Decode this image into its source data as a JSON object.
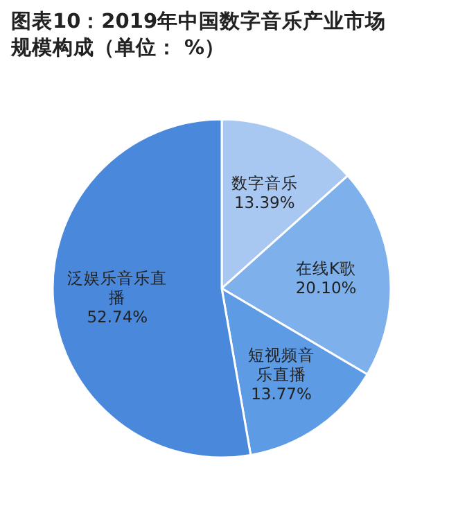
{
  "chart_data": {
    "type": "pie",
    "title": "图表10：2019年中国数字音乐产业市场规模构成（单位： %）",
    "categories": [
      "数字音乐",
      "在线K歌",
      "短视频音乐直播",
      "泛娱乐音乐直播"
    ],
    "values": [
      13.39,
      20.1,
      13.77,
      52.74
    ],
    "value_labels": [
      "13.39%",
      "20.10%",
      "13.77%",
      "52.74%"
    ],
    "colors": [
      "#a8c8f2",
      "#7eb0ec",
      "#5d9be4",
      "#4a88dc"
    ]
  }
}
